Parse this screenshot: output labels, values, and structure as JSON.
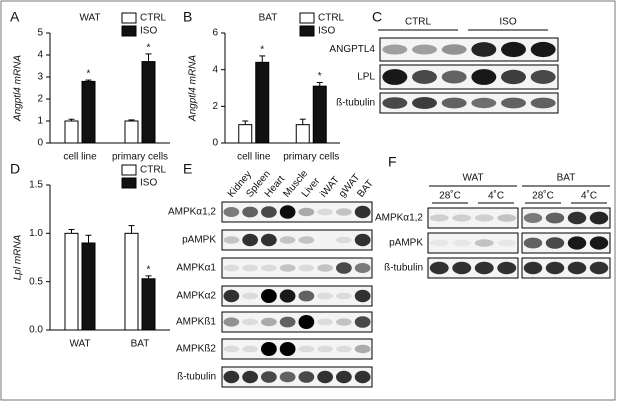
{
  "chart_data": [
    {
      "type": "bar",
      "panel": "A",
      "title": "WAT",
      "y_label": "Angptl4 mRNA",
      "categories": [
        "cell line",
        "primary cells"
      ],
      "series": [
        {
          "name": "CTRL",
          "color": "#ffffff",
          "values": [
            1.0,
            1.0
          ],
          "errors": [
            0.08,
            0.05
          ]
        },
        {
          "name": "ISO",
          "color": "#111111",
          "values": [
            2.8,
            3.7
          ],
          "errors": [
            0.06,
            0.35
          ],
          "markers": [
            "*",
            "*"
          ]
        }
      ],
      "ylim": [
        0,
        5
      ],
      "yticks": [
        0,
        1,
        2,
        3,
        4,
        5
      ]
    },
    {
      "type": "bar",
      "panel": "B",
      "title": "BAT",
      "y_label": "Angptl4 mRNA",
      "categories": [
        "cell line",
        "primary cells"
      ],
      "series": [
        {
          "name": "CTRL",
          "color": "#ffffff",
          "values": [
            1.0,
            1.0
          ],
          "errors": [
            0.2,
            0.3
          ]
        },
        {
          "name": "ISO",
          "color": "#111111",
          "values": [
            4.4,
            3.1
          ],
          "errors": [
            0.35,
            0.2
          ],
          "markers": [
            "*",
            "*"
          ]
        }
      ],
      "ylim": [
        0,
        6
      ],
      "yticks": [
        0,
        2,
        4,
        6
      ]
    },
    {
      "type": "bar",
      "panel": "D",
      "y_label": "Lpl mRNA",
      "categories": [
        "WAT",
        "BAT"
      ],
      "series": [
        {
          "name": "CTRL",
          "color": "#ffffff",
          "values": [
            1.0,
            1.0
          ],
          "errors": [
            0.04,
            0.08
          ]
        },
        {
          "name": "ISO",
          "color": "#111111",
          "values": [
            0.9,
            0.53
          ],
          "errors": [
            0.08,
            0.03
          ],
          "markers": [
            null,
            "*"
          ]
        }
      ],
      "ylim": [
        0,
        1.5
      ],
      "yticks": [
        {
          "value": 0,
          "label": "0.0"
        },
        0.5,
        {
          "value": 1,
          "label": "1.0"
        },
        1.5
      ]
    }
  ],
  "blot_c": {
    "letter": "C",
    "groups": [
      "CTRL",
      "ISO"
    ],
    "rows": [
      "ANGPTL4",
      "LPL",
      "ß-tubulin"
    ]
  },
  "blot_e": {
    "letter": "E",
    "lanes": [
      "Kidney",
      "Spleen",
      "Heart",
      "Muscle",
      "Liver",
      "iWAT",
      "gWAT",
      "BAT"
    ],
    "rows": [
      "AMPKα1,2",
      "pAMPK",
      "AMPKα1",
      "AMPKα2",
      "AMPKß1",
      "AMPKß2",
      "ß-tubulin"
    ]
  },
  "blot_f": {
    "letter": "F",
    "groups": [
      "WAT",
      "BAT"
    ],
    "temps": [
      "28˚C",
      "4˚C",
      "28˚C",
      "4˚C"
    ],
    "rows": [
      "AMPKα1,2",
      "pAMPK",
      "ß-tubulin"
    ]
  }
}
